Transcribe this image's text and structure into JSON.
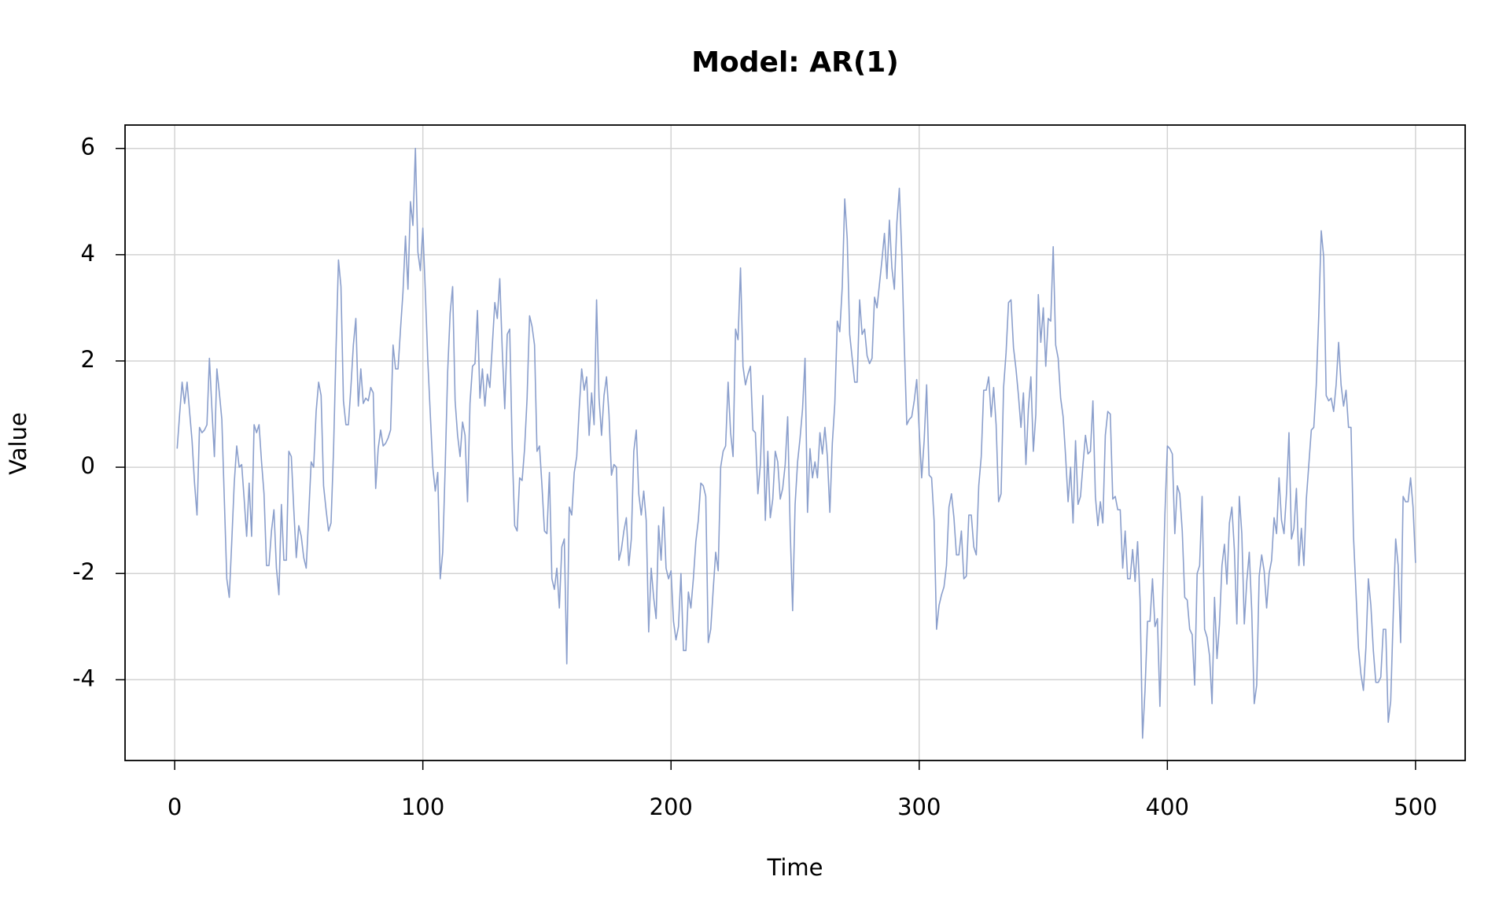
{
  "chart_data": {
    "type": "line",
    "title": "Model: AR(1)",
    "x_label": "Time",
    "y_label": "Value",
    "color": "#8b9fcc",
    "grid": true,
    "xlim": [
      -20,
      520
    ],
    "ylim": [
      -5.52,
      6.44
    ],
    "xticks": [
      0,
      100,
      200,
      300,
      400,
      500
    ],
    "yticks": [
      -4,
      -2,
      0,
      2,
      4,
      6
    ],
    "x": [
      1,
      2,
      3,
      4,
      5,
      6,
      7,
      8,
      9,
      10,
      11,
      12,
      13,
      14,
      15,
      16,
      17,
      18,
      19,
      20,
      21,
      22,
      23,
      24,
      25,
      26,
      27,
      28,
      29,
      30,
      31,
      32,
      33,
      34,
      35,
      36,
      37,
      38,
      39,
      40,
      41,
      42,
      43,
      44,
      45,
      46,
      47,
      48,
      49,
      50,
      51,
      52,
      53,
      54,
      55,
      56,
      57,
      58,
      59,
      60,
      61,
      62,
      63,
      64,
      65,
      66,
      67,
      68,
      69,
      70,
      71,
      72,
      73,
      74,
      75,
      76,
      77,
      78,
      79,
      80,
      81,
      82,
      83,
      84,
      85,
      86,
      87,
      88,
      89,
      90,
      91,
      92,
      93,
      94,
      95,
      96,
      97,
      98,
      99,
      100,
      101,
      102,
      103,
      104,
      105,
      106,
      107,
      108,
      109,
      110,
      111,
      112,
      113,
      114,
      115,
      116,
      117,
      118,
      119,
      120,
      121,
      122,
      123,
      124,
      125,
      126,
      127,
      128,
      129,
      130,
      131,
      132,
      133,
      134,
      135,
      136,
      137,
      138,
      139,
      140,
      141,
      142,
      143,
      144,
      145,
      146,
      147,
      148,
      149,
      150,
      151,
      152,
      153,
      154,
      155,
      156,
      157,
      158,
      159,
      160,
      161,
      162,
      163,
      164,
      165,
      166,
      167,
      168,
      169,
      170,
      171,
      172,
      173,
      174,
      175,
      176,
      177,
      178,
      179,
      180,
      181,
      182,
      183,
      184,
      185,
      186,
      187,
      188,
      189,
      190,
      191,
      192,
      193,
      194,
      195,
      196,
      197,
      198,
      199,
      200,
      201,
      202,
      203,
      204,
      205,
      206,
      207,
      208,
      209,
      210,
      211,
      212,
      213,
      214,
      215,
      216,
      217,
      218,
      219,
      220,
      221,
      222,
      223,
      224,
      225,
      226,
      227,
      228,
      229,
      230,
      231,
      232,
      233,
      234,
      235,
      236,
      237,
      238,
      239,
      240,
      241,
      242,
      243,
      244,
      245,
      246,
      247,
      248,
      249,
      250,
      251,
      252,
      253,
      254,
      255,
      256,
      257,
      258,
      259,
      260,
      261,
      262,
      263,
      264,
      265,
      266,
      267,
      268,
      269,
      270,
      271,
      272,
      273,
      274,
      275,
      276,
      277,
      278,
      279,
      280,
      281,
      282,
      283,
      284,
      285,
      286,
      287,
      288,
      289,
      290,
      291,
      292,
      293,
      294,
      295,
      296,
      297,
      298,
      299,
      300,
      301,
      302,
      303,
      304,
      305,
      306,
      307,
      308,
      309,
      310,
      311,
      312,
      313,
      314,
      315,
      316,
      317,
      318,
      319,
      320,
      321,
      322,
      323,
      324,
      325,
      326,
      327,
      328,
      329,
      330,
      331,
      332,
      333,
      334,
      335,
      336,
      337,
      338,
      339,
      340,
      341,
      342,
      343,
      344,
      345,
      346,
      347,
      348,
      349,
      350,
      351,
      352,
      353,
      354,
      355,
      356,
      357,
      358,
      359,
      360,
      361,
      362,
      363,
      364,
      365,
      366,
      367,
      368,
      369,
      370,
      371,
      372,
      373,
      374,
      375,
      376,
      377,
      378,
      379,
      380,
      381,
      382,
      383,
      384,
      385,
      386,
      387,
      388,
      389,
      390,
      391,
      392,
      393,
      394,
      395,
      396,
      397,
      398,
      399,
      400,
      401,
      402,
      403,
      404,
      405,
      406,
      407,
      408,
      409,
      410,
      411,
      412,
      413,
      414,
      415,
      416,
      417,
      418,
      419,
      420,
      421,
      422,
      423,
      424,
      425,
      426,
      427,
      428,
      429,
      430,
      431,
      432,
      433,
      434,
      435,
      436,
      437,
      438,
      439,
      440,
      441,
      442,
      443,
      444,
      445,
      446,
      447,
      448,
      449,
      450,
      451,
      452,
      453,
      454,
      455,
      456,
      457,
      458,
      459,
      460,
      461,
      462,
      463,
      464,
      465,
      466,
      467,
      468,
      469,
      470,
      471,
      472,
      473,
      474,
      475,
      476,
      477,
      478,
      479,
      480,
      481,
      482,
      483,
      484,
      485,
      486,
      487,
      488,
      489,
      490,
      491,
      492,
      493,
      494,
      495,
      496,
      497,
      498,
      499,
      500
    ],
    "values": [
      0.35,
      1.0,
      1.6,
      1.2,
      1.6,
      1.05,
      0.5,
      -0.3,
      -0.9,
      0.75,
      0.65,
      0.7,
      0.8,
      2.05,
      1.1,
      0.2,
      1.85,
      1.4,
      0.9,
      -0.6,
      -2.1,
      -2.45,
      -1.4,
      -0.3,
      0.4,
      0,
      0.05,
      -0.6,
      -1.3,
      -0.3,
      -1.3,
      0.8,
      0.65,
      0.8,
      0.1,
      -0.5,
      -1.85,
      -1.85,
      -1.2,
      -0.8,
      -1.9,
      -2.4,
      -0.7,
      -1.75,
      -1.75,
      0.3,
      0.2,
      -0.8,
      -1.7,
      -1.1,
      -1.3,
      -1.7,
      -1.9,
      -0.9,
      0.1,
      0,
      1.05,
      1.6,
      1.35,
      -0.35,
      -0.8,
      -1.2,
      -1.05,
      0.3,
      2.2,
      3.9,
      3.4,
      1.25,
      0.8,
      0.8,
      1.5,
      2.3,
      2.8,
      1.15,
      1.85,
      1.2,
      1.3,
      1.25,
      1.5,
      1.4,
      -0.4,
      0.35,
      0.7,
      0.4,
      0.45,
      0.55,
      0.7,
      2.3,
      1.85,
      1.85,
      2.6,
      3.3,
      4.35,
      3.35,
      5,
      4.55,
      6,
      4.05,
      3.7,
      4.5,
      3.3,
      2.0,
      1.0,
      0,
      -0.45,
      -0.1,
      -2.1,
      -1.6,
      0.0,
      1.8,
      2.9,
      3.4,
      1.25,
      0.6,
      0.2,
      0.85,
      0.6,
      -0.65,
      1.2,
      1.9,
      1.95,
      2.95,
      1.3,
      1.85,
      1.15,
      1.75,
      1.5,
      2.3,
      3.1,
      2.8,
      3.55,
      2.2,
      1.1,
      2.5,
      2.6,
      0.35,
      -1.1,
      -1.2,
      -0.2,
      -0.25,
      0.35,
      1.3,
      2.85,
      2.65,
      2.3,
      0.3,
      0.4,
      -0.35,
      -1.2,
      -1.25,
      -0.1,
      -2.1,
      -2.3,
      -1.9,
      -2.65,
      -1.5,
      -1.35,
      -3.7,
      -0.75,
      -0.9,
      -0.1,
      0.2,
      1.1,
      1.85,
      1.45,
      1.7,
      0.6,
      1.4,
      0.8,
      3.15,
      1.3,
      0.6,
      1.35,
      1.7,
      1.0,
      -0.15,
      0.05,
      0,
      -1.75,
      -1.55,
      -1.2,
      -0.95,
      -1.85,
      -1.35,
      0.3,
      0.7,
      -0.5,
      -0.9,
      -0.45,
      -1.0,
      -3.1,
      -1.9,
      -2.45,
      -2.85,
      -1.1,
      -1.75,
      -0.75,
      -1.9,
      -2.1,
      -1.95,
      -2.9,
      -3.25,
      -3.0,
      -2.0,
      -3.45,
      -3.45,
      -2.35,
      -2.65,
      -2.1,
      -1.4,
      -1.0,
      -0.3,
      -0.35,
      -0.55,
      -3.3,
      -3.05,
      -2.3,
      -1.6,
      -1.95,
      0,
      0.3,
      0.4,
      1.6,
      0.65,
      0.2,
      2.6,
      2.4,
      3.75,
      1.9,
      1.55,
      1.75,
      1.9,
      0.7,
      0.65,
      -0.5,
      0.05,
      1.35,
      -1.0,
      0.3,
      -0.95,
      -0.6,
      0.3,
      0.1,
      -0.6,
      -0.4,
      0.05,
      0.95,
      -1.15,
      -2.7,
      -0.7,
      0.1,
      0.55,
      1.1,
      2.05,
      -0.85,
      0.35,
      -0.2,
      0.1,
      -0.2,
      0.65,
      0.25,
      0.75,
      0.2,
      -0.85,
      0.45,
      1.2,
      2.75,
      2.55,
      3.4,
      5.05,
      4.3,
      2.5,
      2.05,
      1.6,
      1.6,
      3.15,
      2.5,
      2.6,
      2.1,
      1.95,
      2.05,
      3.2,
      3.0,
      3.45,
      3.9,
      4.4,
      3.55,
      4.65,
      3.75,
      3.35,
      4.6,
      5.25,
      4.0,
      2.3,
      0.8,
      0.9,
      0.95,
      1.25,
      1.65,
      0.7,
      -0.2,
      0.5,
      1.55,
      -0.15,
      -0.2,
      -1.0,
      -3.05,
      -2.6,
      -2.4,
      -2.25,
      -1.85,
      -0.75,
      -0.5,
      -0.95,
      -1.65,
      -1.65,
      -1.2,
      -2.1,
      -2.05,
      -0.9,
      -0.9,
      -1.5,
      -1.65,
      -0.35,
      0.2,
      1.45,
      1.45,
      1.7,
      0.95,
      1.5,
      0.8,
      -0.65,
      -0.5,
      1.5,
      2.15,
      3.1,
      3.15,
      2.25,
      1.85,
      1.35,
      0.75,
      1.4,
      0.05,
      1.1,
      1.7,
      0.3,
      1.0,
      3.25,
      2.35,
      3.0,
      1.9,
      2.8,
      2.75,
      4.15,
      2.3,
      2.05,
      1.3,
      0.95,
      0.2,
      -0.65,
      0,
      -1.05,
      0.5,
      -0.7,
      -0.55,
      0.05,
      0.6,
      0.25,
      0.3,
      1.25,
      -0.55,
      -1.1,
      -0.65,
      -1.05,
      0.6,
      1.05,
      1.0,
      -0.6,
      -0.55,
      -0.8,
      -0.8,
      -1.9,
      -1.2,
      -2.1,
      -2.1,
      -1.55,
      -2.15,
      -1.4,
      -2.5,
      -5.1,
      -4.2,
      -2.9,
      -2.9,
      -2.1,
      -3.0,
      -2.85,
      -4.5,
      -2.6,
      -0.9,
      0.4,
      0.35,
      0.25,
      -1.25,
      -0.35,
      -0.5,
      -1.2,
      -2.45,
      -2.5,
      -3.05,
      -3.15,
      -4.1,
      -2.0,
      -1.85,
      -0.55,
      -3.05,
      -3.2,
      -3.55,
      -4.45,
      -2.45,
      -3.6,
      -2.95,
      -1.85,
      -1.45,
      -2.2,
      -1.05,
      -0.75,
      -1.55,
      -2.95,
      -0.55,
      -1.25,
      -2.95,
      -2.15,
      -1.6,
      -2.7,
      -4.45,
      -4.1,
      -2.05,
      -1.65,
      -1.95,
      -2.65,
      -2.0,
      -1.75,
      -0.95,
      -1.25,
      -0.2,
      -1.0,
      -1.25,
      -0.5,
      0.65,
      -1.35,
      -1.15,
      -0.4,
      -1.85,
      -1.15,
      -1.85,
      -0.6,
      0.05,
      0.7,
      0.75,
      1.55,
      2.85,
      4.45,
      3.95,
      1.35,
      1.25,
      1.3,
      1.05,
      1.55,
      2.35,
      1.55,
      1.15,
      1.45,
      0.75,
      0.75,
      -1.3,
      -2.35,
      -3.4,
      -3.9,
      -4.2,
      -3.4,
      -2.1,
      -2.6,
      -3.45,
      -4.05,
      -4.05,
      -3.95,
      -3.05,
      -3.05,
      -4.8,
      -4.4,
      -2.8,
      -1.35,
      -1.85,
      -3.3,
      -0.55,
      -0.65,
      -0.65,
      -0.2,
      -0.75,
      -1.8
    ]
  }
}
